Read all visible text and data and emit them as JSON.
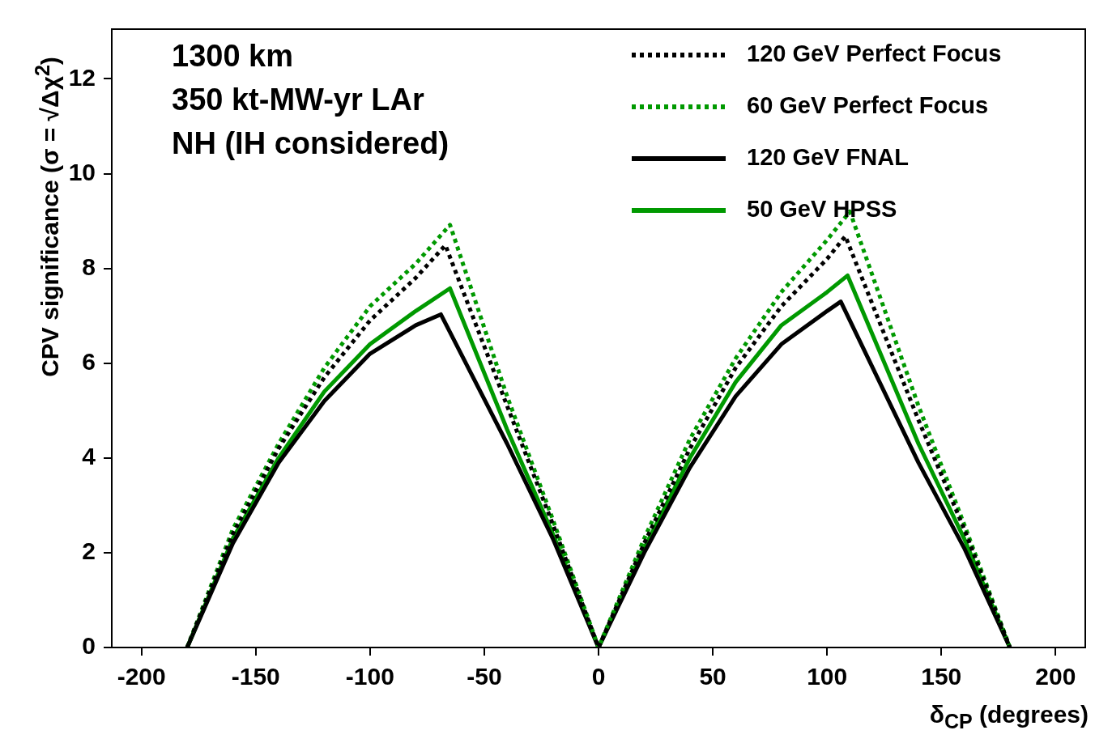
{
  "chart_data": {
    "type": "line",
    "xlabel": "δ$_{CP}$ (degrees)",
    "ylabel": "CPV significance (σ = √Δχ$^{2}$)",
    "annotations": [
      "1300 km",
      "350 kt-MW-yr LAr",
      "NH (IH considered)"
    ],
    "xlim": [
      -213,
      213
    ],
    "xticks": [
      -200,
      -150,
      -100,
      -50,
      0,
      50,
      100,
      150,
      200
    ],
    "ylim": [
      0,
      13.05
    ],
    "yticks": [
      0,
      2,
      4,
      6,
      8,
      10,
      12
    ],
    "grid": false,
    "legend": "top right",
    "marker": "none",
    "series": [
      {
        "name": "120 GeV Perfect Focus",
        "color": "#000000",
        "line_style": "dotted",
        "x": [
          -180,
          -160,
          -140,
          -120,
          -100,
          -80,
          -67,
          -40,
          -20,
          0,
          20,
          40,
          60,
          80,
          100,
          108,
          140,
          160,
          180
        ],
        "values": [
          0,
          2.4,
          4.2,
          5.7,
          6.9,
          7.8,
          8.49,
          5.1,
          2.6,
          0,
          2.2,
          4.2,
          5.9,
          7.2,
          8.2,
          8.68,
          4.8,
          2.5,
          0
        ]
      },
      {
        "name": "60 GeV Perfect Focus",
        "color": "#009900",
        "line_style": "dotted",
        "x": [
          -180,
          -160,
          -140,
          -120,
          -100,
          -80,
          -65,
          -40,
          -20,
          0,
          20,
          40,
          60,
          80,
          100,
          110,
          140,
          160,
          180
        ],
        "values": [
          0,
          2.5,
          4.3,
          5.9,
          7.2,
          8.1,
          8.92,
          5.3,
          2.7,
          0,
          2.3,
          4.4,
          6.1,
          7.5,
          8.6,
          9.2,
          5.1,
          2.6,
          0
        ]
      },
      {
        "name": "120 GeV FNAL",
        "color": "#000000",
        "line_style": "solid",
        "x": [
          -180,
          -160,
          -140,
          -120,
          -100,
          -80,
          -69,
          -40,
          -20,
          0,
          20,
          40,
          60,
          80,
          100,
          106,
          140,
          160,
          180
        ],
        "values": [
          0,
          2.2,
          3.9,
          5.2,
          6.2,
          6.8,
          7.03,
          4.3,
          2.3,
          0,
          2.0,
          3.8,
          5.3,
          6.4,
          7.1,
          7.3,
          3.9,
          2.1,
          0
        ]
      },
      {
        "name": "50 GeV HPSS",
        "color": "#009900",
        "line_style": "solid",
        "x": [
          -180,
          -160,
          -140,
          -120,
          -100,
          -80,
          -65,
          -40,
          -20,
          0,
          20,
          40,
          60,
          80,
          100,
          109,
          140,
          160,
          180
        ],
        "values": [
          0,
          2.3,
          4.0,
          5.4,
          6.4,
          7.1,
          7.58,
          4.6,
          2.4,
          0,
          2.1,
          4.0,
          5.6,
          6.8,
          7.5,
          7.85,
          4.3,
          2.3,
          0
        ]
      }
    ]
  }
}
